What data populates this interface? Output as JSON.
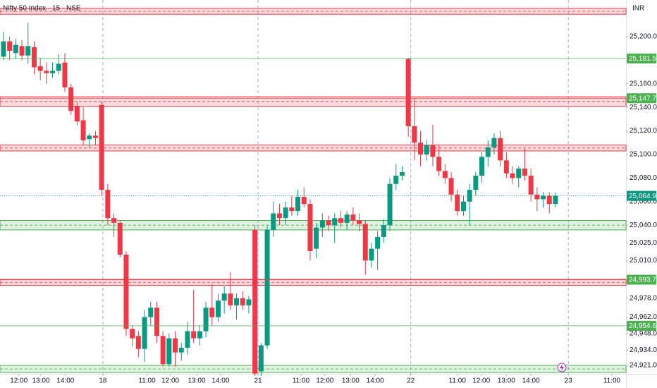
{
  "chart_data": {
    "type": "candlestick",
    "title": "Nifty 50 Index · 15 · NSE",
    "currency": "INR",
    "up_color": "#089981",
    "down_color": "#f23645",
    "xlim": [
      -0.57,
      101.5
    ],
    "ylim": [
      24913.8,
      25231.1
    ],
    "grid": false,
    "xticks": [
      {
        "value": 2.5,
        "label": "12:00"
      },
      {
        "value": 6.1,
        "label": "13:00"
      },
      {
        "value": 10.1,
        "label": "14:00"
      },
      {
        "value": 16.2,
        "label": "18"
      },
      {
        "value": 23.4,
        "label": "11:00"
      },
      {
        "value": 27.2,
        "label": "12:00"
      },
      {
        "value": 31.5,
        "label": "13:00"
      },
      {
        "value": 35.4,
        "label": "14:00"
      },
      {
        "value": 41.5,
        "label": "21"
      },
      {
        "value": 48.5,
        "label": "11:00"
      },
      {
        "value": 52.4,
        "label": "12:00"
      },
      {
        "value": 56.6,
        "label": "13:00"
      },
      {
        "value": 60.6,
        "label": "14:00"
      },
      {
        "value": 66.4,
        "label": "22"
      },
      {
        "value": 74,
        "label": "11:00"
      },
      {
        "value": 77.9,
        "label": "12:00"
      },
      {
        "value": 82,
        "label": "13:00"
      },
      {
        "value": 86,
        "label": "14:00"
      },
      {
        "value": 92.1,
        "label": "23"
      },
      {
        "value": 99.2,
        "label": "11:00"
      }
    ],
    "yticks": [
      {
        "value": 25200,
        "label": "25,200.00"
      },
      {
        "value": 25160,
        "label": "25,160.00"
      },
      {
        "value": 25140,
        "label": "25,140.00"
      },
      {
        "value": 25120,
        "label": "25,120.00"
      },
      {
        "value": 25100,
        "label": "25,100.00"
      },
      {
        "value": 25080,
        "label": "25,080.00"
      },
      {
        "value": 25060,
        "label": "25,060.00"
      },
      {
        "value": 25040,
        "label": "25,040.00"
      },
      {
        "value": 25025,
        "label": "25,025.00"
      },
      {
        "value": 25010,
        "label": "25,010.00"
      },
      {
        "value": 24978,
        "label": "24,978.00"
      },
      {
        "value": 24962,
        "label": "24,962.00"
      },
      {
        "value": 24948,
        "label": "24,948.00"
      },
      {
        "value": 24934,
        "label": "24,934.00"
      },
      {
        "value": 24921,
        "label": "24,921.00"
      }
    ],
    "zones": [
      {
        "low": 25219,
        "high": 25224,
        "color": "#f23645"
      },
      {
        "low": 25141,
        "high": 25149,
        "color": "#f23645"
      },
      {
        "low": 25103,
        "high": 25108,
        "color": "#f23645"
      },
      {
        "low": 25036,
        "high": 25044,
        "color": "#4caf50"
      },
      {
        "low": 24989,
        "high": 24994,
        "color": "#f23645"
      },
      {
        "low": 24915,
        "high": 24921,
        "color": "#4caf50"
      }
    ],
    "lines": [
      {
        "value": 25181.5,
        "label": "25,181.50",
        "color": "#4caf50"
      },
      {
        "value": 25147.75,
        "label": "25,147.75",
        "color": "#f23645"
      },
      {
        "value": 25064.9,
        "label": "25,064.90",
        "color": "#089981"
      },
      {
        "value": 24993.7,
        "label": "24,993.70",
        "color": "#f23645"
      },
      {
        "value": 24954.6,
        "label": "24,954.60",
        "color": "#4caf50"
      }
    ],
    "open": [
      25183,
      25196,
      25186,
      25192,
      25184,
      25191,
      25175,
      25171,
      25169,
      25171,
      25178,
      25157,
      25141,
      25129,
      25113,
      25116,
      25142,
      25070,
      25046,
      25042,
      25015,
      24952,
      24946,
      24935,
      24962,
      24970,
      24946,
      24922,
      24944,
      24932,
      24936,
      24950,
      24944,
      24950,
      24970,
      24962,
      24976,
      24982,
      24972,
      24978,
      24972,
      25036,
      24916,
      24938,
      25036,
      25050,
      25046,
      25055,
      25052,
      25064,
      25058,
      25020,
      25038,
      25044,
      25040,
      25046,
      25042,
      25049,
      25044,
      25041,
      25010,
      25020,
      25030,
      25040,
      25075,
      25082,
      25181,
      25124,
      25110,
      25100,
      25108,
      25098,
      25086,
      25080,
      25066,
      25052,
      25060,
      25070,
      25082,
      25098,
      25106,
      25114,
      25095,
      25084,
      25080,
      25088,
      25082,
      25066,
      25062,
      25065,
      25058
    ],
    "high": [
      25204,
      25200,
      25198,
      25197,
      25212,
      25196,
      25182,
      25178,
      25178,
      25185,
      25186,
      25160,
      25145,
      25140,
      25118,
      25120,
      25145,
      25075,
      25050,
      25044,
      25018,
      24955,
      24950,
      24968,
      24975,
      24975,
      24950,
      24948,
      24950,
      24940,
      24958,
      24985,
      24955,
      24975,
      24990,
      24982,
      24988,
      25000,
      24982,
      24984,
      24980,
      25040,
      24940,
      25040,
      25060,
      25058,
      25060,
      25065,
      25070,
      25072,
      25062,
      25042,
      25050,
      25048,
      25050,
      25052,
      25052,
      25055,
      25050,
      25044,
      25025,
      25035,
      25045,
      25080,
      25092,
      25090,
      25182,
      25148,
      25120,
      25112,
      25125,
      25108,
      25092,
      25085,
      25070,
      25065,
      25075,
      25085,
      25102,
      25112,
      25118,
      25120,
      25102,
      25090,
      25090,
      25105,
      25088,
      25072,
      25068,
      25068,
      25068
    ],
    "low": [
      25180,
      25180,
      25181,
      25180,
      25177,
      25168,
      25163,
      25160,
      25165,
      25168,
      25153,
      25134,
      25125,
      25108,
      25106,
      25108,
      25065,
      25040,
      25030,
      25013,
      24946,
      24937,
      24928,
      24924,
      24955,
      24940,
      24920,
      24920,
      24920,
      24925,
      24930,
      24940,
      24938,
      24945,
      24955,
      24958,
      24965,
      24968,
      24960,
      24968,
      24965,
      24912,
      24912,
      24935,
      25030,
      25040,
      25040,
      25048,
      25048,
      25055,
      25010,
      25012,
      25030,
      25035,
      25025,
      25038,
      25036,
      25040,
      25035,
      24998,
      25004,
      25002,
      25025,
      25035,
      25070,
      25078,
      25115,
      25095,
      25090,
      25095,
      25090,
      25082,
      25075,
      25060,
      25048,
      25048,
      25040,
      25065,
      25076,
      25090,
      25100,
      25090,
      25080,
      25075,
      25072,
      25078,
      25060,
      25052,
      25055,
      25050,
      25055
    ],
    "close": [
      25196,
      25188,
      25193,
      25184,
      25192,
      25174,
      25171,
      25169,
      25171,
      25177,
      25157,
      25137,
      25128,
      25112,
      25116,
      25114,
      25070,
      25046,
      25042,
      25015,
      24952,
      24944,
      24935,
      24962,
      24970,
      24946,
      24922,
      24944,
      24932,
      24936,
      24950,
      24944,
      24950,
      24970,
      24962,
      24976,
      24982,
      24972,
      24978,
      24972,
      24977,
      24914,
      24938,
      25036,
      25050,
      25046,
      25055,
      25052,
      25064,
      25058,
      25018,
      25038,
      25044,
      25040,
      25046,
      25042,
      25049,
      25044,
      25041,
      25010,
      25020,
      25030,
      25040,
      25075,
      25082,
      25085,
      25124,
      25110,
      25100,
      25108,
      25098,
      25086,
      25080,
      25066,
      25052,
      25060,
      25070,
      25082,
      25098,
      25106,
      25114,
      25095,
      25084,
      25080,
      25088,
      25082,
      25066,
      25062,
      25065,
      25058,
      25064.9
    ]
  }
}
